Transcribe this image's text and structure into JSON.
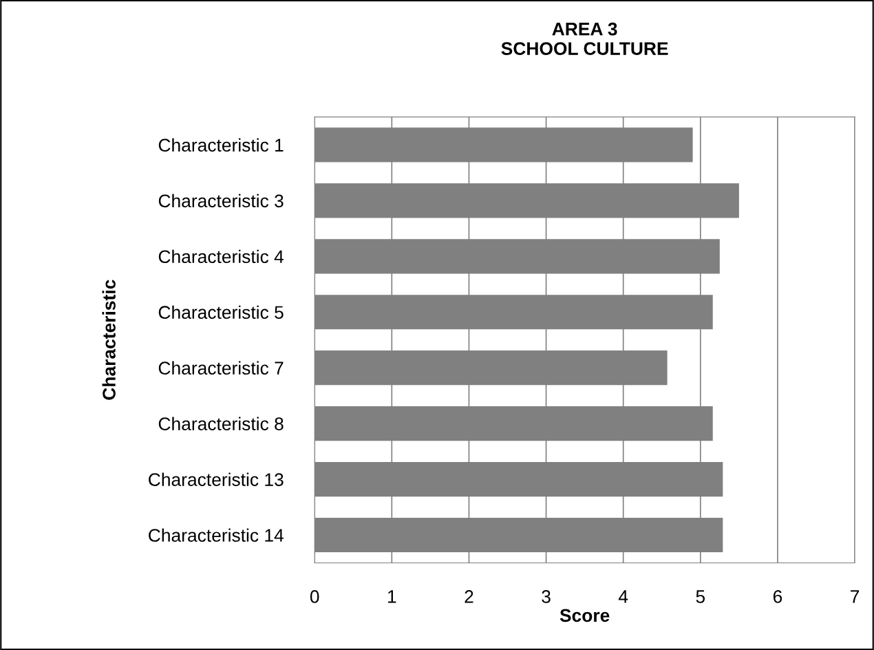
{
  "chart_data": {
    "type": "bar",
    "orientation": "horizontal",
    "title": "AREA 3\nSCHOOL CULTURE",
    "xlabel": "Score",
    "ylabel": "Characteristic",
    "categories": [
      "Characteristic 1",
      "Characteristic 3",
      "Characteristic 4",
      "Characteristic 5",
      "Characteristic 7",
      "Characteristic 8",
      "Characteristic 13",
      "Characteristic 14"
    ],
    "values": [
      4.9,
      5.5,
      5.25,
      5.16,
      4.57,
      5.16,
      5.29,
      5.29
    ],
    "color": "#808080",
    "xlim": [
      0,
      7
    ],
    "xticks": [
      0,
      1,
      2,
      3,
      4,
      5,
      6,
      7
    ],
    "grid": "x",
    "legend": false
  }
}
